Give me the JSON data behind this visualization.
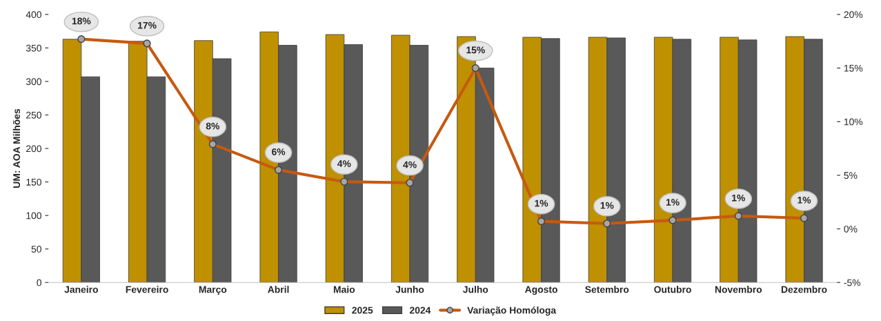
{
  "chart_data": {
    "type": "bar",
    "ylabel": "UM: AOA Milhões",
    "categories": [
      "Janeiro",
      "Fevereiro",
      "Março",
      "Abril",
      "Maio",
      "Junho",
      "Julho",
      "Agosto",
      "Setembro",
      "Outubro",
      "Novembro",
      "Dezembro"
    ],
    "series": [
      {
        "name": "2025",
        "color": "#bf9000",
        "values": [
          363,
          360,
          361,
          374,
          370,
          369,
          367,
          366,
          366,
          366,
          366,
          367
        ]
      },
      {
        "name": "2024",
        "color": "#595959",
        "values": [
          307,
          307,
          334,
          354,
          355,
          354,
          320,
          364,
          365,
          363,
          362,
          363
        ]
      },
      {
        "name": "Variação Homóloga",
        "type": "line",
        "axis": "y2",
        "color": "#c55a11",
        "marker": "circle",
        "line_style": "solid",
        "values": [
          17.7,
          17.3,
          7.9,
          5.5,
          4.4,
          4.3,
          15.0,
          0.7,
          0.5,
          0.8,
          1.2,
          1.0
        ],
        "value_labels": [
          "18%",
          "17%",
          "8%",
          "6%",
          "4%",
          "4%",
          "15%",
          "1%",
          "1%",
          "1%",
          "1%",
          "1%"
        ]
      }
    ],
    "ylim": [
      0,
      400
    ],
    "yticks": [
      0,
      50,
      100,
      150,
      200,
      250,
      300,
      350,
      400
    ],
    "y2lim": [
      -5,
      20
    ],
    "y2ticks": [
      {
        "value": -5,
        "label": "-5%"
      },
      {
        "value": 0,
        "label": "0%"
      },
      {
        "value": 5,
        "label": "5%"
      },
      {
        "value": 10,
        "label": "10%"
      },
      {
        "value": 15,
        "label": "15%"
      },
      {
        "value": 20,
        "label": "20%"
      }
    ],
    "grid": false,
    "legend": "bottom"
  }
}
